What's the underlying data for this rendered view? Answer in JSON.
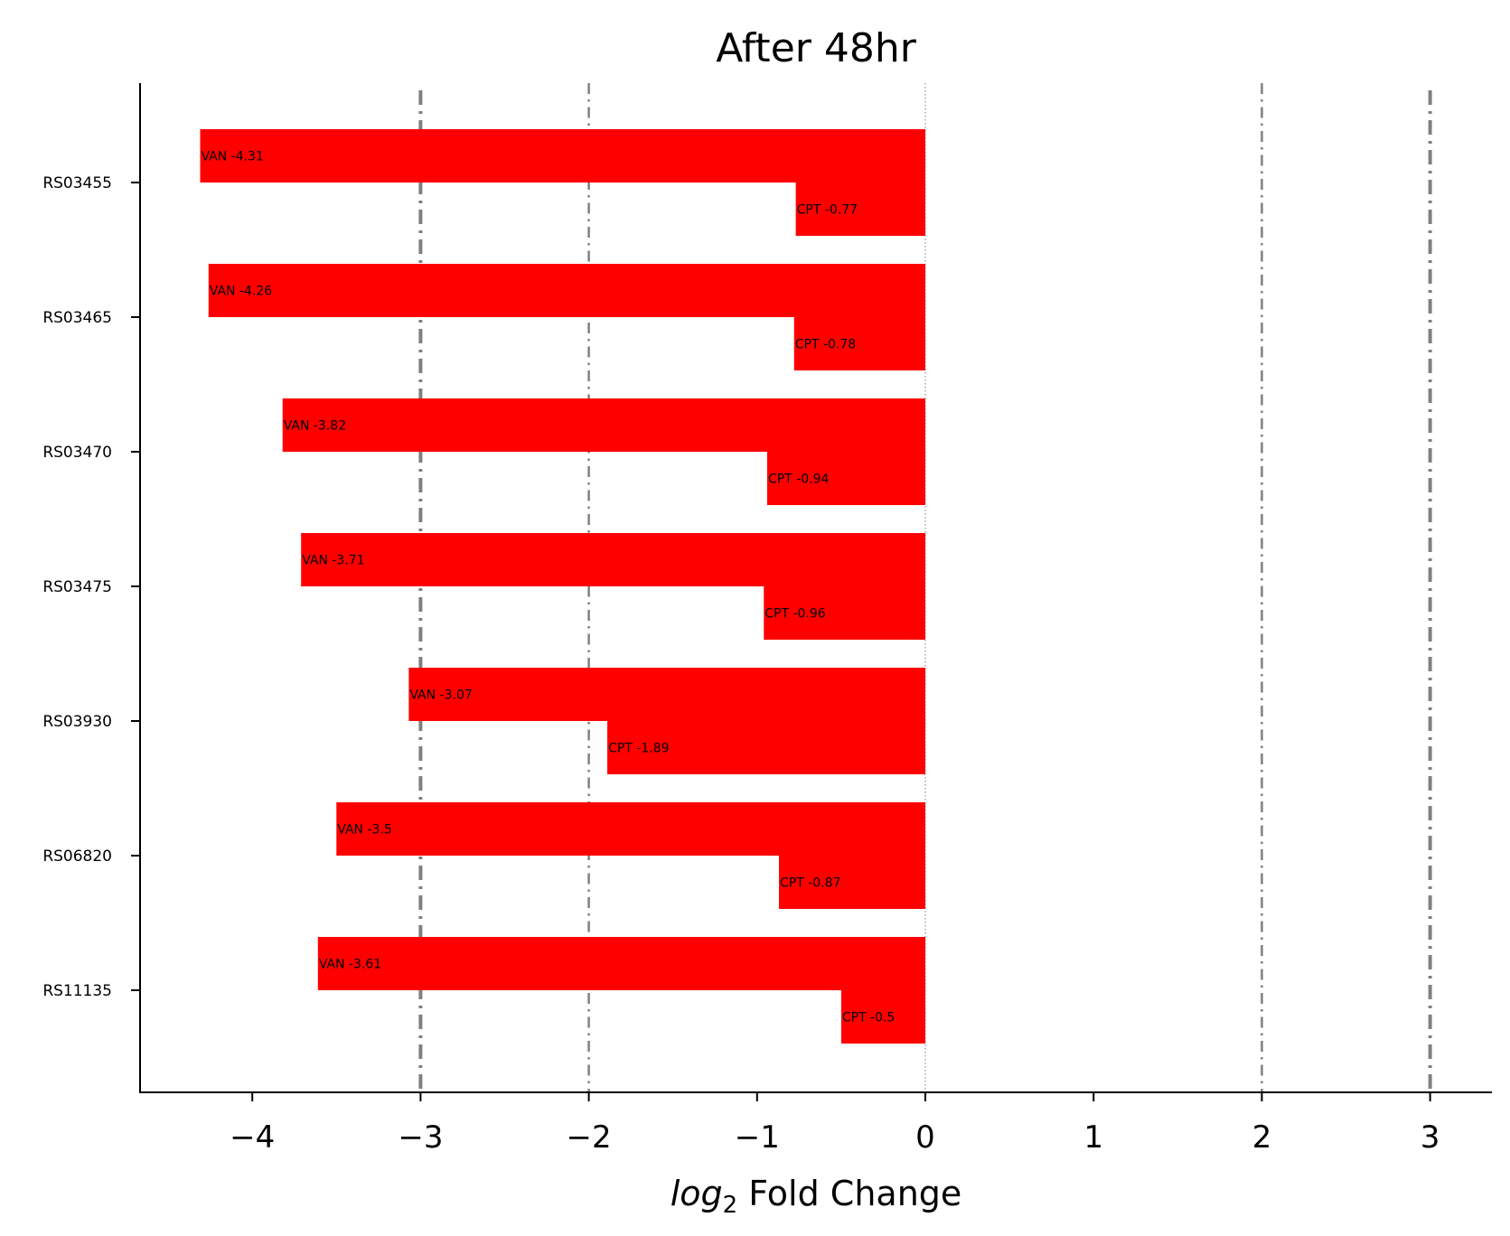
{
  "chart_data": {
    "type": "bar",
    "orientation": "horizontal",
    "title": "After 48hr",
    "xlabel": {
      "italic": "log",
      "subscript": "2",
      "rest": " Fold Change"
    },
    "ylabel": "",
    "categories": [
      "RS03455",
      "RS03465",
      "RS03470",
      "RS03475",
      "RS03930",
      "RS06820",
      "RS11135"
    ],
    "series": [
      {
        "name": "VAN",
        "color": "#ff0000",
        "values": [
          -4.31,
          -4.26,
          -3.82,
          -3.71,
          -3.07,
          -3.5,
          -3.61
        ]
      },
      {
        "name": "CPT",
        "color": "#ff0000",
        "values": [
          -0.77,
          -0.78,
          -0.94,
          -0.96,
          -1.89,
          -0.87,
          -0.5
        ]
      }
    ],
    "bar_labels": {
      "VAN": [
        "VAN -4.31",
        "VAN -4.26",
        "VAN -3.82",
        "VAN -3.71",
        "VAN -3.07",
        "VAN -3.5",
        "VAN -3.61"
      ],
      "CPT": [
        "CPT -0.77",
        "CPT -0.78",
        "CPT -0.94",
        "CPT -0.96",
        "CPT -1.89",
        "CPT -0.87",
        "CPT -0.5"
      ]
    },
    "xlim": [
      -4.67,
      3.37
    ],
    "xticks": [
      -4,
      -3,
      -2,
      -1,
      0,
      1,
      2,
      3
    ],
    "xtick_labels": [
      "−4",
      "−3",
      "−2",
      "−1",
      "0",
      "1",
      "2",
      "3"
    ],
    "reference_lines": [
      {
        "x": -3,
        "style": "dashdot",
        "weight": "thick",
        "color": "#808080"
      },
      {
        "x": -2,
        "style": "dashdot",
        "weight": "thin",
        "color": "#808080"
      },
      {
        "x": 0,
        "style": "dotted",
        "weight": "hairline",
        "color": "#808080"
      },
      {
        "x": 2,
        "style": "dashdot",
        "weight": "thin",
        "color": "#808080"
      },
      {
        "x": 3,
        "style": "dashdot",
        "weight": "thick",
        "color": "#808080"
      }
    ],
    "grid": false,
    "legend": "none"
  }
}
